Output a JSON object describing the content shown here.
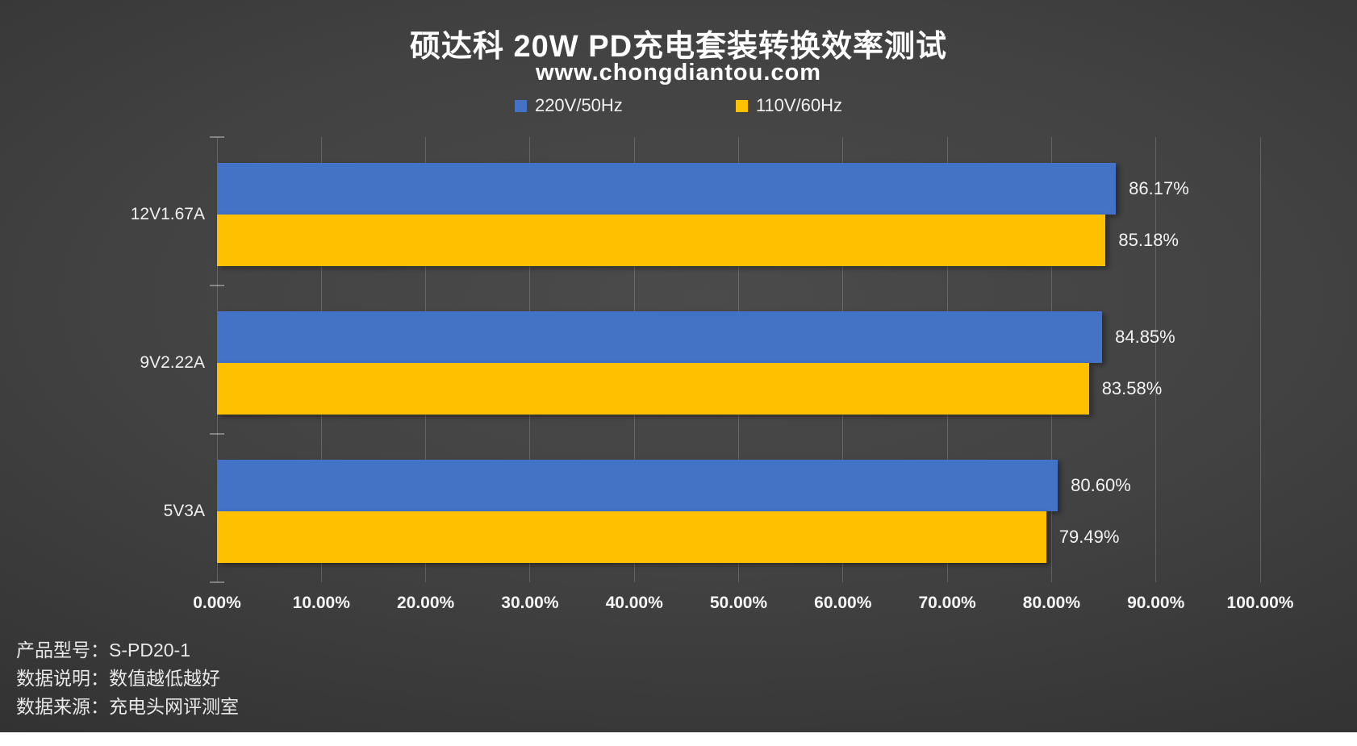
{
  "title": "硕达科 20W PD充电套装转换效率测试",
  "subtitle": "www.chongdiantou.com",
  "chart_data": {
    "type": "bar",
    "orientation": "horizontal",
    "title": "硕达科 20W PD充电套装转换效率测试",
    "subtitle": "www.chongdiantou.com",
    "categories": [
      "12V1.67A",
      "9V2.22A",
      "5V3A"
    ],
    "series": [
      {
        "name": "220V/50Hz",
        "color": "#4472C4",
        "values": [
          86.17,
          84.85,
          80.6
        ],
        "labels": [
          "86.17%",
          "84.85%",
          "80.60%"
        ]
      },
      {
        "name": "110V/60Hz",
        "color": "#FFC000",
        "values": [
          85.18,
          83.58,
          79.49
        ],
        "labels": [
          "85.18%",
          "83.58%",
          "79.49%"
        ]
      }
    ],
    "xlim": [
      0,
      100
    ],
    "x_tick_step": 10,
    "x_tick_labels": [
      "0.00%",
      "10.00%",
      "20.00%",
      "30.00%",
      "40.00%",
      "50.00%",
      "60.00%",
      "70.00%",
      "80.00%",
      "90.00%",
      "100.00%"
    ],
    "grid": true,
    "legend_position": "top"
  },
  "footer": {
    "lines": [
      "产品型号：S-PD20-1",
      "数据说明：数值越低越好",
      "数据来源：充电头网评测室"
    ]
  },
  "colors": {
    "series_220v": "#4472C4",
    "series_110v": "#FFC000",
    "text": "#F2F2F2",
    "background_center": "#4B4B4B",
    "background_edge": "#272727",
    "bottom_strip": "#FFFFFF"
  }
}
